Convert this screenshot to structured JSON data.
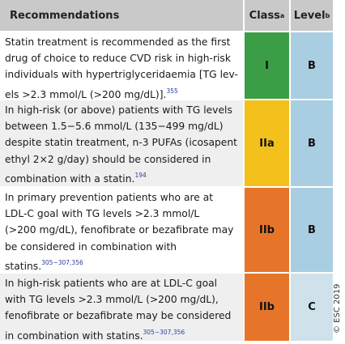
{
  "header": {
    "recommendations": "Recommendations",
    "class": "Class",
    "class_sup": "a",
    "level": "Level",
    "level_sup": "b"
  },
  "rows": [
    {
      "lines": [
        "Statin treatment is recommended as the first",
        "drug of choice to reduce CVD risk in high-risk",
        "individuals with hypertriglyceridaemia [TG lev-",
        "els >2.3 mmol/L (>200 mg/dL)]."
      ],
      "ref": "355",
      "class": "I",
      "level": "B"
    },
    {
      "lines": [
        "In high-risk (or above) patients with TG levels",
        "between 1.5−5.6 mmol/L (135−499 mg/dL)",
        "despite statin treatment, n-3 PUFAs (icosapent",
        "ethyl 2×2 g/day) should be considered in",
        "combination with a statin."
      ],
      "ref": "194",
      "class": "IIa",
      "level": "B"
    },
    {
      "lines": [
        "In primary prevention patients who are at",
        "LDL-C goal with TG levels >2.3 mmol/L",
        "(>200 mg/dL), fenofibrate or bezafibrate may",
        "be considered in combination with",
        "statins."
      ],
      "ref": "305−307,356",
      "class": "IIb",
      "level": "B"
    },
    {
      "lines": [
        "In high-risk patients who are at LDL-C goal",
        "with TG levels >2.3 mmol/L (>200 mg/dL),",
        "fenofibrate or bezafibrate may be considered",
        "in combination with statins."
      ],
      "ref": "305−307,356",
      "class": "IIb",
      "level": "C"
    }
  ],
  "copyright": "© ESC 2019"
}
